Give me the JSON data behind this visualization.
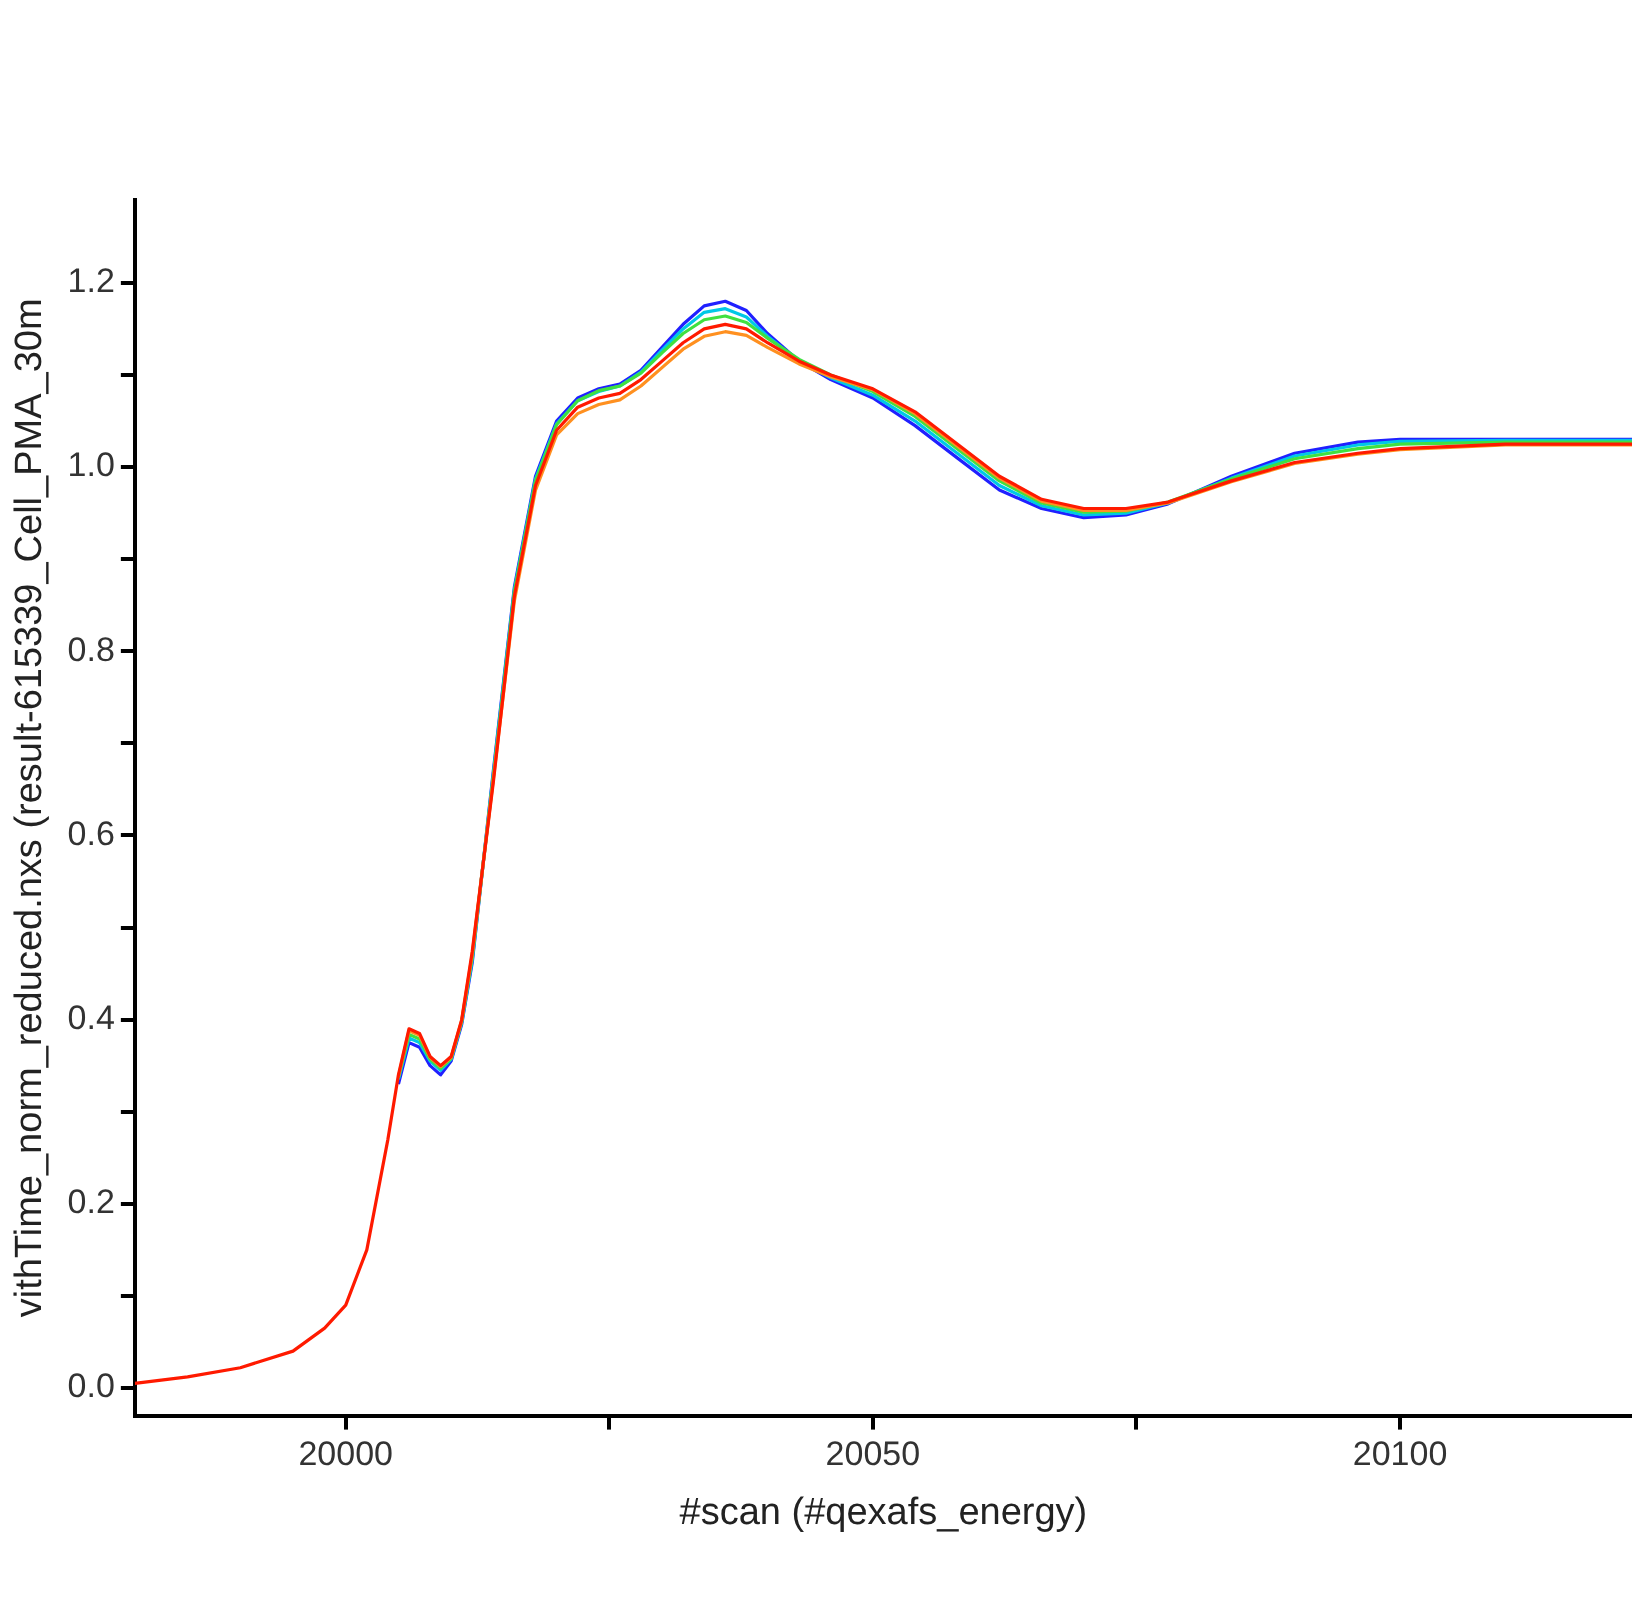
{
  "chart_data": {
    "type": "line",
    "xlabel": "#scan (#qexafs_energy)",
    "ylabel": "vithTime_norm_reduced.nxs (result-615339_Cell_PMA_30m",
    "x": [
      19980,
      19985,
      19990,
      19995,
      19998,
      20000,
      20002,
      20004,
      20005,
      20006,
      20007,
      20008,
      20009,
      20010,
      20011,
      20012,
      20014,
      20016,
      20018,
      20020,
      20022,
      20024,
      20026,
      20028,
      20030,
      20032,
      20034,
      20036,
      20038,
      20040,
      20043,
      20046,
      20050,
      20054,
      20058,
      20062,
      20066,
      20070,
      20074,
      20078,
      20084,
      20090,
      20096,
      20100,
      20110,
      20122
    ],
    "series": [
      {
        "color": "#2020ff",
        "values": [
          null,
          null,
          null,
          null,
          null,
          null,
          null,
          null,
          0.33,
          0.375,
          0.37,
          0.35,
          0.34,
          0.355,
          0.395,
          0.462,
          0.67,
          0.87,
          0.99,
          1.05,
          1.075,
          1.085,
          1.09,
          1.105,
          1.13,
          1.155,
          1.175,
          1.18,
          1.17,
          1.145,
          1.115,
          1.095,
          1.075,
          1.045,
          1.01,
          0.975,
          0.955,
          0.945,
          0.948,
          0.96,
          0.99,
          1.015,
          1.027,
          1.03,
          1.03,
          1.03
        ]
      },
      {
        "color": "#00c8e6",
        "values": [
          null,
          null,
          null,
          null,
          null,
          null,
          null,
          null,
          0.335,
          0.38,
          0.375,
          0.355,
          0.345,
          0.357,
          0.397,
          0.465,
          0.667,
          0.867,
          0.987,
          1.047,
          1.072,
          1.082,
          1.088,
          1.103,
          1.127,
          1.15,
          1.168,
          1.172,
          1.163,
          1.142,
          1.115,
          1.097,
          1.078,
          1.05,
          1.015,
          0.98,
          0.958,
          0.948,
          0.95,
          0.961,
          0.988,
          1.012,
          1.024,
          1.028,
          1.029,
          1.029
        ]
      },
      {
        "color": "#40e040",
        "values": [
          null,
          null,
          null,
          null,
          null,
          null,
          null,
          null,
          0.337,
          0.384,
          0.379,
          0.357,
          0.347,
          0.358,
          0.398,
          0.468,
          0.664,
          0.865,
          0.985,
          1.046,
          1.072,
          1.083,
          1.088,
          1.102,
          1.124,
          1.145,
          1.16,
          1.164,
          1.157,
          1.14,
          1.117,
          1.1,
          1.082,
          1.055,
          1.02,
          0.985,
          0.961,
          0.951,
          0.952,
          0.962,
          0.987,
          1.009,
          1.02,
          1.025,
          1.027,
          1.027
        ]
      },
      {
        "color": "#ff9020",
        "values": [
          null,
          null,
          null,
          null,
          null,
          null,
          null,
          null,
          0.338,
          0.388,
          0.383,
          0.359,
          0.349,
          0.359,
          0.399,
          0.471,
          0.661,
          0.855,
          0.975,
          1.035,
          1.058,
          1.068,
          1.073,
          1.088,
          1.108,
          1.128,
          1.142,
          1.147,
          1.143,
          1.13,
          1.112,
          1.098,
          1.084,
          1.058,
          1.023,
          0.988,
          0.963,
          0.953,
          0.953,
          0.961,
          0.984,
          1.004,
          1.014,
          1.019,
          1.024,
          1.024
        ]
      },
      {
        "color": "#ff1a00",
        "values": [
          0.005,
          0.012,
          0.022,
          0.04,
          0.065,
          0.09,
          0.15,
          0.27,
          0.34,
          0.39,
          0.385,
          0.36,
          0.35,
          0.36,
          0.4,
          0.474,
          0.658,
          0.86,
          0.98,
          1.04,
          1.065,
          1.075,
          1.08,
          1.095,
          1.115,
          1.135,
          1.15,
          1.155,
          1.15,
          1.135,
          1.115,
          1.1,
          1.085,
          1.06,
          1.025,
          0.99,
          0.965,
          0.955,
          0.955,
          0.962,
          0.985,
          1.005,
          1.015,
          1.02,
          1.025,
          1.025
        ]
      }
    ],
    "xlim": [
      19980,
      20122
    ],
    "xticks": [
      20000,
      {
        "value": 20025,
        "label": null
      },
      20050,
      {
        "value": 20075,
        "label": null
      },
      20100
    ],
    "ylim": [
      -0.03,
      1.29
    ],
    "yticks": [
      {
        "value": 0,
        "label": "0.0"
      },
      {
        "value": 0.1,
        "label": null
      },
      {
        "value": 0.2,
        "label": "0.2"
      },
      {
        "value": 0.3,
        "label": null
      },
      {
        "value": 0.4,
        "label": "0.4"
      },
      {
        "value": 0.5,
        "label": null
      },
      {
        "value": 0.6,
        "label": "0.6"
      },
      {
        "value": 0.7,
        "label": null
      },
      {
        "value": 0.8,
        "label": "0.8"
      },
      {
        "value": 0.9,
        "label": null
      },
      {
        "value": 1,
        "label": "1.0"
      },
      {
        "value": 1.1,
        "label": null
      },
      {
        "value": 1.2,
        "label": "1.2"
      }
    ],
    "marker": "none",
    "line_style": "solid"
  }
}
